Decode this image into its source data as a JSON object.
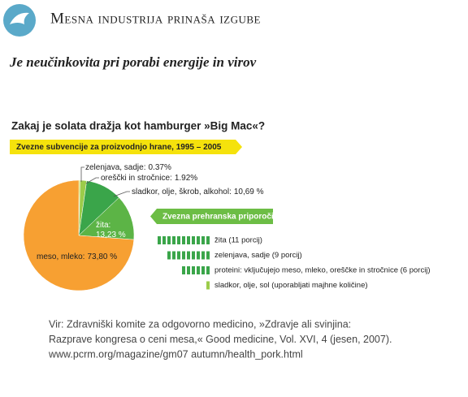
{
  "header": {
    "title": "Mesna industrija prinaša izgube",
    "subtitle": "Je neučinkovita pri porabi energije in virov"
  },
  "chart_data": {
    "type": "pie",
    "title": "Zakaj je solata dražja kot hamburger »Big Mac«?",
    "subtitle": "Zvezne subvencije za proizvodnjo hrane, 1995 – 2005",
    "categories": [
      "zelenjava, sadje:",
      "oreščki in stročnice:",
      "sladkor, olje, škrob, alkohol:",
      "žita:",
      "meso, mleko:"
    ],
    "values": [
      0.37,
      1.92,
      10.69,
      13.23,
      73.8
    ],
    "value_labels": [
      "0.37%",
      "1.92%",
      "10,69 %",
      "13,23 %",
      "73,80 %"
    ],
    "colors": [
      "#d4d83a",
      "#9ccc4a",
      "#3aa54a",
      "#5cb446",
      "#f7a032"
    ]
  },
  "recommendations": {
    "title": "Zvezna prehranska priporočila",
    "color": "#3aa54a",
    "items": [
      {
        "label": "žita (11 porcij)",
        "portions": 11
      },
      {
        "label": "zelenjava, sadje (9 porcij)",
        "portions": 9
      },
      {
        "label": "proteini: vključujejo meso, mleko, oreščke in stročnice (6 porcij)",
        "portions": 6
      },
      {
        "label": "sladkor, olje, sol (uporabljati majhne količine)",
        "portions": 1
      }
    ]
  },
  "source": {
    "lines": [
      "Vir: Zdravniški komite za odgovorno medicino, »Zdravje ali svinjina:",
      "Razprave kongresa o ceni mesa,« Good medicine, Vol. XVI, 4 (jesen, 2007).",
      "www.pcrm.org/magazine/gm07 autumn/health_pork.html"
    ]
  }
}
